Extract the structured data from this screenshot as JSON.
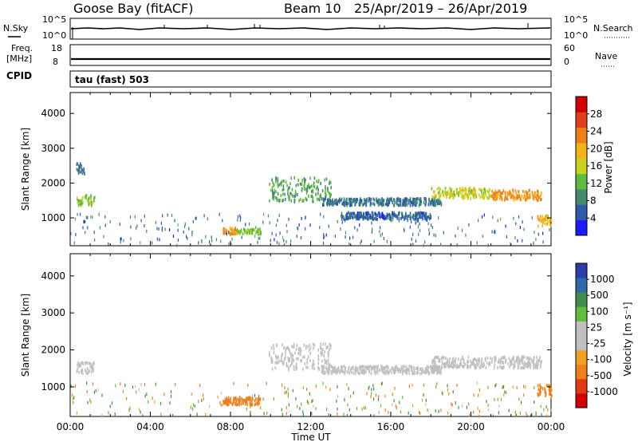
{
  "header": {
    "site": "Goose Bay (fitACF)",
    "beam": "Beam 10",
    "date_range": "25/Apr/2019 – 26/Apr/2019"
  },
  "strips": {
    "nsky_label": "N.Sky",
    "nsky_ticks": [
      "10^5",
      "10^0"
    ],
    "nsearch_label": "N.Search",
    "nsearch_ticks": [
      "10^5",
      "10^0"
    ],
    "freq_label_1": "Freq.",
    "freq_label_2": "[MHz]",
    "freq_ticks": [
      "18",
      "8"
    ],
    "nave_label": "Nave",
    "nave_ticks": [
      "60",
      "0"
    ],
    "cpid_label": "CPID",
    "cpid_value": "tau (fast) 503"
  },
  "colors": {
    "power_scale": [
      "#1a1aff",
      "#2f5aa8",
      "#3f8b6a",
      "#5dbb3f",
      "#c8d21f",
      "#f2b21a",
      "#f07f1a",
      "#e0401a",
      "#d40000"
    ],
    "velocity_scale": [
      "#2a3ea8",
      "#2f6aa8",
      "#3f8f4a",
      "#5fbf3a",
      "#c0c0c0",
      "#c0c0c0",
      "#f2a020",
      "#f07f1a",
      "#e03a10",
      "#d40000"
    ]
  },
  "chart_data": [
    {
      "type": "heatmap",
      "title": "",
      "ylabel": "Slant Range [km]",
      "xlabel": "",
      "xlim": [
        "00:00",
        "24:00"
      ],
      "ylim": [
        200,
        4600
      ],
      "y_ticks": [
        1000,
        2000,
        3000,
        4000
      ],
      "colorbar": {
        "label": "Power [dB]",
        "ticks": [
          4,
          8,
          12,
          16,
          20,
          24,
          28
        ]
      },
      "regions": [
        {
          "t_start": 0.3,
          "t_end": 1.2,
          "range_km": [
            1400,
            1700
          ],
          "value": 14
        },
        {
          "t_start": 0.3,
          "t_end": 0.7,
          "range_km": [
            2300,
            2600
          ],
          "value": 6
        },
        {
          "t_start": 7.6,
          "t_end": 8.3,
          "range_km": [
            550,
            750
          ],
          "value": 22
        },
        {
          "t_start": 8.3,
          "t_end": 9.5,
          "range_km": [
            580,
            720
          ],
          "value": 14
        },
        {
          "t_start": 9.9,
          "t_end": 13.0,
          "range_km": [
            1500,
            2200
          ],
          "value": 11
        },
        {
          "t_start": 12.5,
          "t_end": 18.5,
          "range_km": [
            1400,
            1600
          ],
          "value": 7
        },
        {
          "t_start": 13.5,
          "t_end": 18.0,
          "range_km": [
            1000,
            1200
          ],
          "value": 6
        },
        {
          "t_start": 18.0,
          "t_end": 21.0,
          "range_km": [
            1600,
            1900
          ],
          "value": 16
        },
        {
          "t_start": 21.0,
          "t_end": 23.5,
          "range_km": [
            1550,
            1850
          ],
          "value": 22
        },
        {
          "t_start": 23.3,
          "t_end": 24.0,
          "range_km": [
            800,
            1100
          ],
          "value": 20
        }
      ]
    },
    {
      "type": "heatmap",
      "title": "",
      "ylabel": "Slant Range [km]",
      "xlabel": "Time UT",
      "xlim": [
        "00:00",
        "24:00"
      ],
      "ylim": [
        200,
        4600
      ],
      "y_ticks": [
        1000,
        2000,
        3000,
        4000
      ],
      "x_ticks": [
        "00:00",
        "04:00",
        "08:00",
        "12:00",
        "16:00",
        "20:00",
        "00:00"
      ],
      "colorbar": {
        "label": "Velocity [m s⁻¹]",
        "ticks": [
          1000,
          500,
          100,
          25,
          -25,
          -100,
          -500,
          -1000
        ]
      },
      "regions": [
        {
          "t_start": 0.3,
          "t_end": 1.2,
          "range_km": [
            1400,
            1700
          ],
          "value": 0
        },
        {
          "t_start": 7.6,
          "t_end": 9.5,
          "range_km": [
            550,
            750
          ],
          "value": -150
        },
        {
          "t_start": 9.9,
          "t_end": 13.0,
          "range_km": [
            1500,
            2200
          ],
          "value": 0
        },
        {
          "t_start": 12.5,
          "t_end": 18.5,
          "range_km": [
            1400,
            1600
          ],
          "value": 0
        },
        {
          "t_start": 18.0,
          "t_end": 23.5,
          "range_km": [
            1550,
            1850
          ],
          "value": 0
        },
        {
          "t_start": 23.3,
          "t_end": 24.0,
          "range_km": [
            800,
            1100
          ],
          "value": -200
        }
      ]
    }
  ]
}
